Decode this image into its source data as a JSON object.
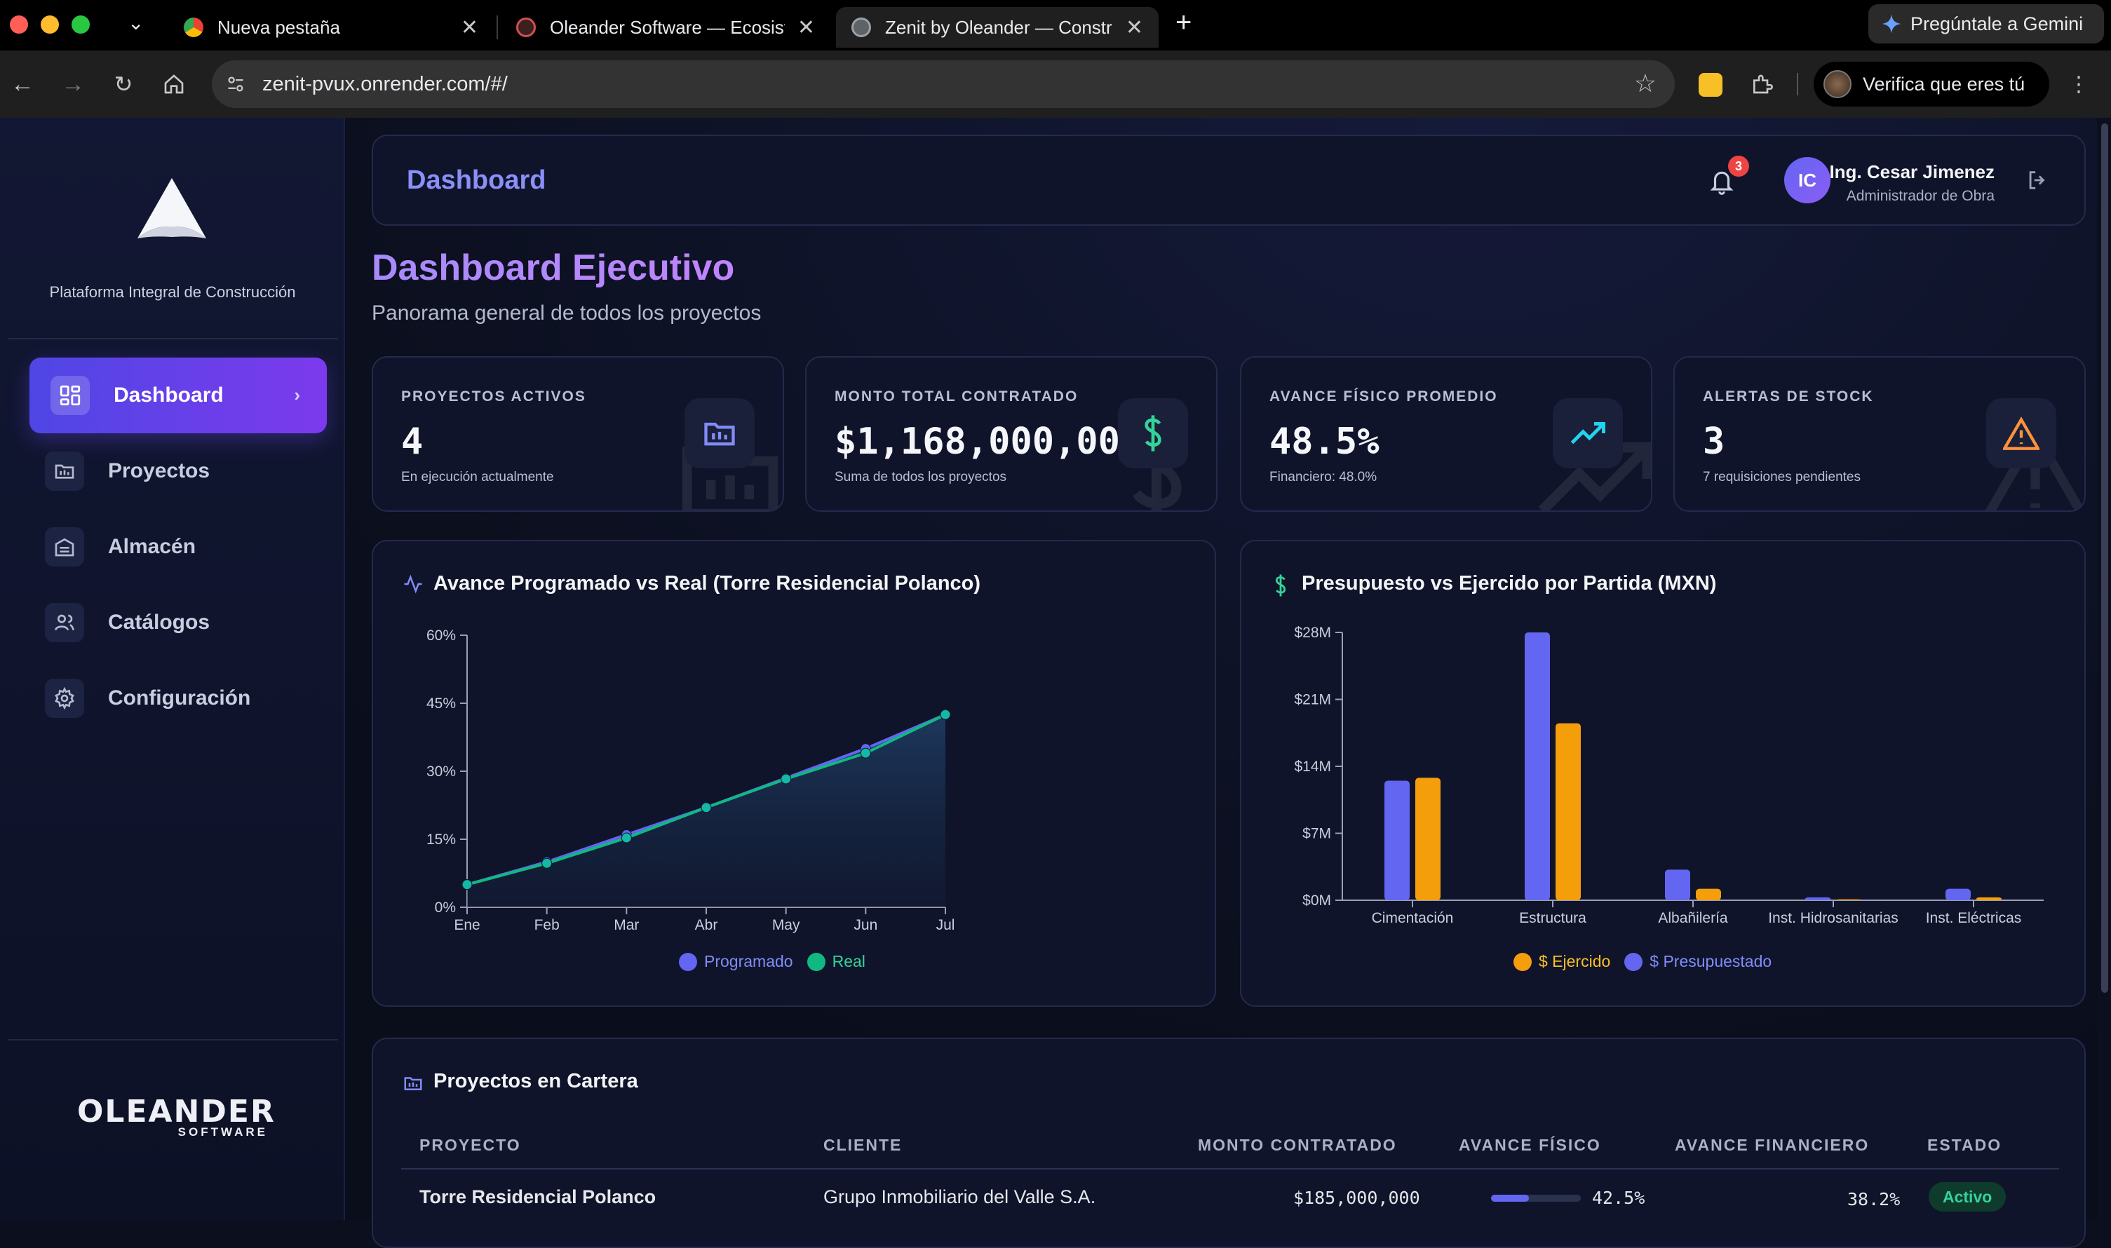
{
  "browser": {
    "tabs": [
      {
        "title": "Nueva pestaña",
        "active": false
      },
      {
        "title": "Oleander Software — Ecosistema",
        "active": false
      },
      {
        "title": "Zenit by Oleander — Construcción",
        "active": true
      }
    ],
    "gemini_label": "Pregúntale a Gemini",
    "url": "zenit-pvux.onrender.com/#/",
    "verify_label": "Verifica que eres tú"
  },
  "sidebar": {
    "tagline": "Plataforma Integral de Construcción",
    "items": [
      {
        "label": "Dashboard",
        "icon": "dashboard-grid-icon",
        "active": true
      },
      {
        "label": "Proyectos",
        "icon": "folder-chart-icon",
        "active": false
      },
      {
        "label": "Almacén",
        "icon": "warehouse-icon",
        "active": false
      },
      {
        "label": "Catálogos",
        "icon": "users-icon",
        "active": false
      },
      {
        "label": "Configuración",
        "icon": "gear-icon",
        "active": false
      }
    ],
    "brand": {
      "name": "OLEANDER",
      "sub": "SOFTWARE"
    }
  },
  "header": {
    "title": "Dashboard",
    "notifications": "3",
    "user": {
      "initials": "IC",
      "name": "Ing. Cesar Jimenez",
      "role": "Administrador de Obra"
    }
  },
  "page": {
    "title": "Dashboard Ejecutivo",
    "subtitle": "Panorama general de todos los proyectos"
  },
  "kpis": [
    {
      "label": "PROYECTOS ACTIVOS",
      "value": "4",
      "sub": "En ejecución actualmente",
      "icon": "folder-chart-icon",
      "color": "#818cf8"
    },
    {
      "label": "MONTO TOTAL CONTRATADO",
      "value": "$1,168,000,000",
      "sub": "Suma de todos los proyectos",
      "icon": "dollar-icon",
      "color": "#34d399"
    },
    {
      "label": "AVANCE FÍSICO PROMEDIO",
      "value": "48.5%",
      "sub": "Financiero: 48.0%",
      "icon": "trending-up-icon",
      "color": "#22d3ee"
    },
    {
      "label": "ALERTAS DE STOCK",
      "value": "3",
      "sub": "7 requisiciones pendientes",
      "icon": "warning-icon",
      "color": "#fb923c"
    }
  ],
  "chart_data": [
    {
      "type": "area",
      "title": "Avance Programado vs Real (Torre Residencial Polanco)",
      "x": [
        "Ene",
        "Feb",
        "Mar",
        "Abr",
        "May",
        "Jun",
        "Jul"
      ],
      "yticks": [
        "0%",
        "15%",
        "30%",
        "45%",
        "60%"
      ],
      "ylim": [
        0,
        60
      ],
      "series": [
        {
          "name": "Programado",
          "color": "#6366f1",
          "values": [
            5,
            10,
            16,
            22,
            28.5,
            35,
            42.5
          ]
        },
        {
          "name": "Real",
          "color": "#10b981",
          "values": [
            5,
            9.7,
            15.3,
            22,
            28.3,
            34,
            42.5
          ]
        }
      ],
      "grid": false,
      "legend": "bottom-center"
    },
    {
      "type": "bar",
      "title": "Presupuesto vs Ejercido por Partida (MXN)",
      "categories": [
        "Cimentación",
        "Estructura",
        "Albañilería",
        "Inst. Hidrosanitarias",
        "Inst. Eléctricas"
      ],
      "yticks": [
        "$0M",
        "$7M",
        "$14M",
        "$21M",
        "$28M"
      ],
      "ylim": [
        0,
        28
      ],
      "series": [
        {
          "name": "$ Presupuestado",
          "color": "#6366f1",
          "values": [
            12.5,
            28,
            3.2,
            0.3,
            1.2
          ]
        },
        {
          "name": "$ Ejercido",
          "color": "#f59e0b",
          "values": [
            12.8,
            18.5,
            1.2,
            0.1,
            0.3
          ]
        }
      ],
      "legend_order": [
        "$ Ejercido",
        "$ Presupuestado"
      ],
      "grid": false,
      "legend": "bottom-center"
    }
  ],
  "table": {
    "title": "Proyectos en Cartera",
    "headers": [
      "PROYECTO",
      "CLIENTE",
      "MONTO CONTRATADO",
      "AVANCE FÍSICO",
      "AVANCE FINANCIERO",
      "ESTADO"
    ],
    "rows": [
      {
        "proyecto": "Torre Residencial Polanco",
        "cliente": "Grupo Inmobiliario del Valle S.A.",
        "monto": "$185,000,000",
        "fisico": "42.5%",
        "fisico_value": 42.5,
        "financiero": "38.2%",
        "estado": "Activo"
      }
    ]
  }
}
